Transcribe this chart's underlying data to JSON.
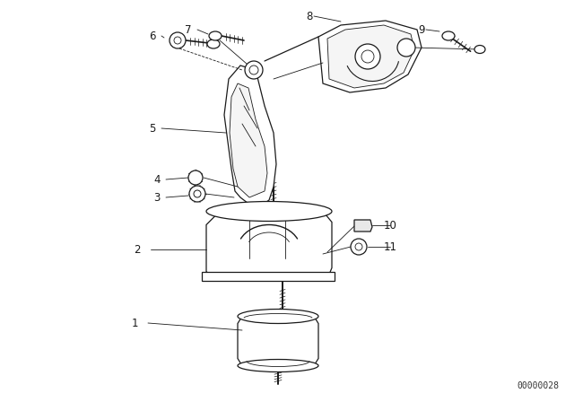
{
  "bg_color": "#ffffff",
  "line_color": "#1a1a1a",
  "fig_width": 6.4,
  "fig_height": 4.48,
  "dpi": 100,
  "watermark": "00000028",
  "watermark_fontsize": 7,
  "lw": 0.9,
  "label_fontsize": 8.5
}
